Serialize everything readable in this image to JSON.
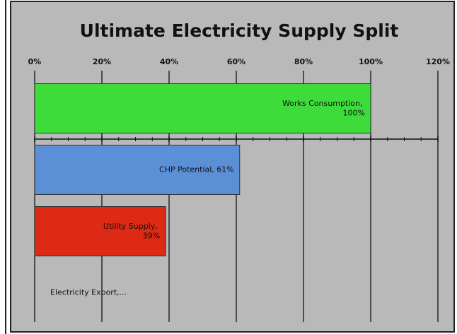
{
  "chart_data": {
    "type": "hbar",
    "title": "Ultimate Electricity Supply Split",
    "values": [
      100,
      61,
      39,
      0
    ],
    "value_labels": [
      "Works Consumption, 100%",
      "CHP Potential, 61%",
      "Utility Supply, 39%",
      "Electricity Export,..."
    ],
    "colors": [
      "#3ddc3a",
      "#5b8fd6",
      "#dc2a14",
      "#888888"
    ],
    "xlim": [
      0,
      120
    ],
    "xticks": [
      {
        "value": 0,
        "label": "0%"
      },
      {
        "value": 20,
        "label": "20%"
      },
      {
        "value": 40,
        "label": "40%"
      },
      {
        "value": 60,
        "label": "60%"
      },
      {
        "value": 80,
        "label": "80%"
      },
      {
        "value": 100,
        "label": "100%"
      },
      {
        "value": 120,
        "label": "120%"
      }
    ],
    "grid": true
  }
}
